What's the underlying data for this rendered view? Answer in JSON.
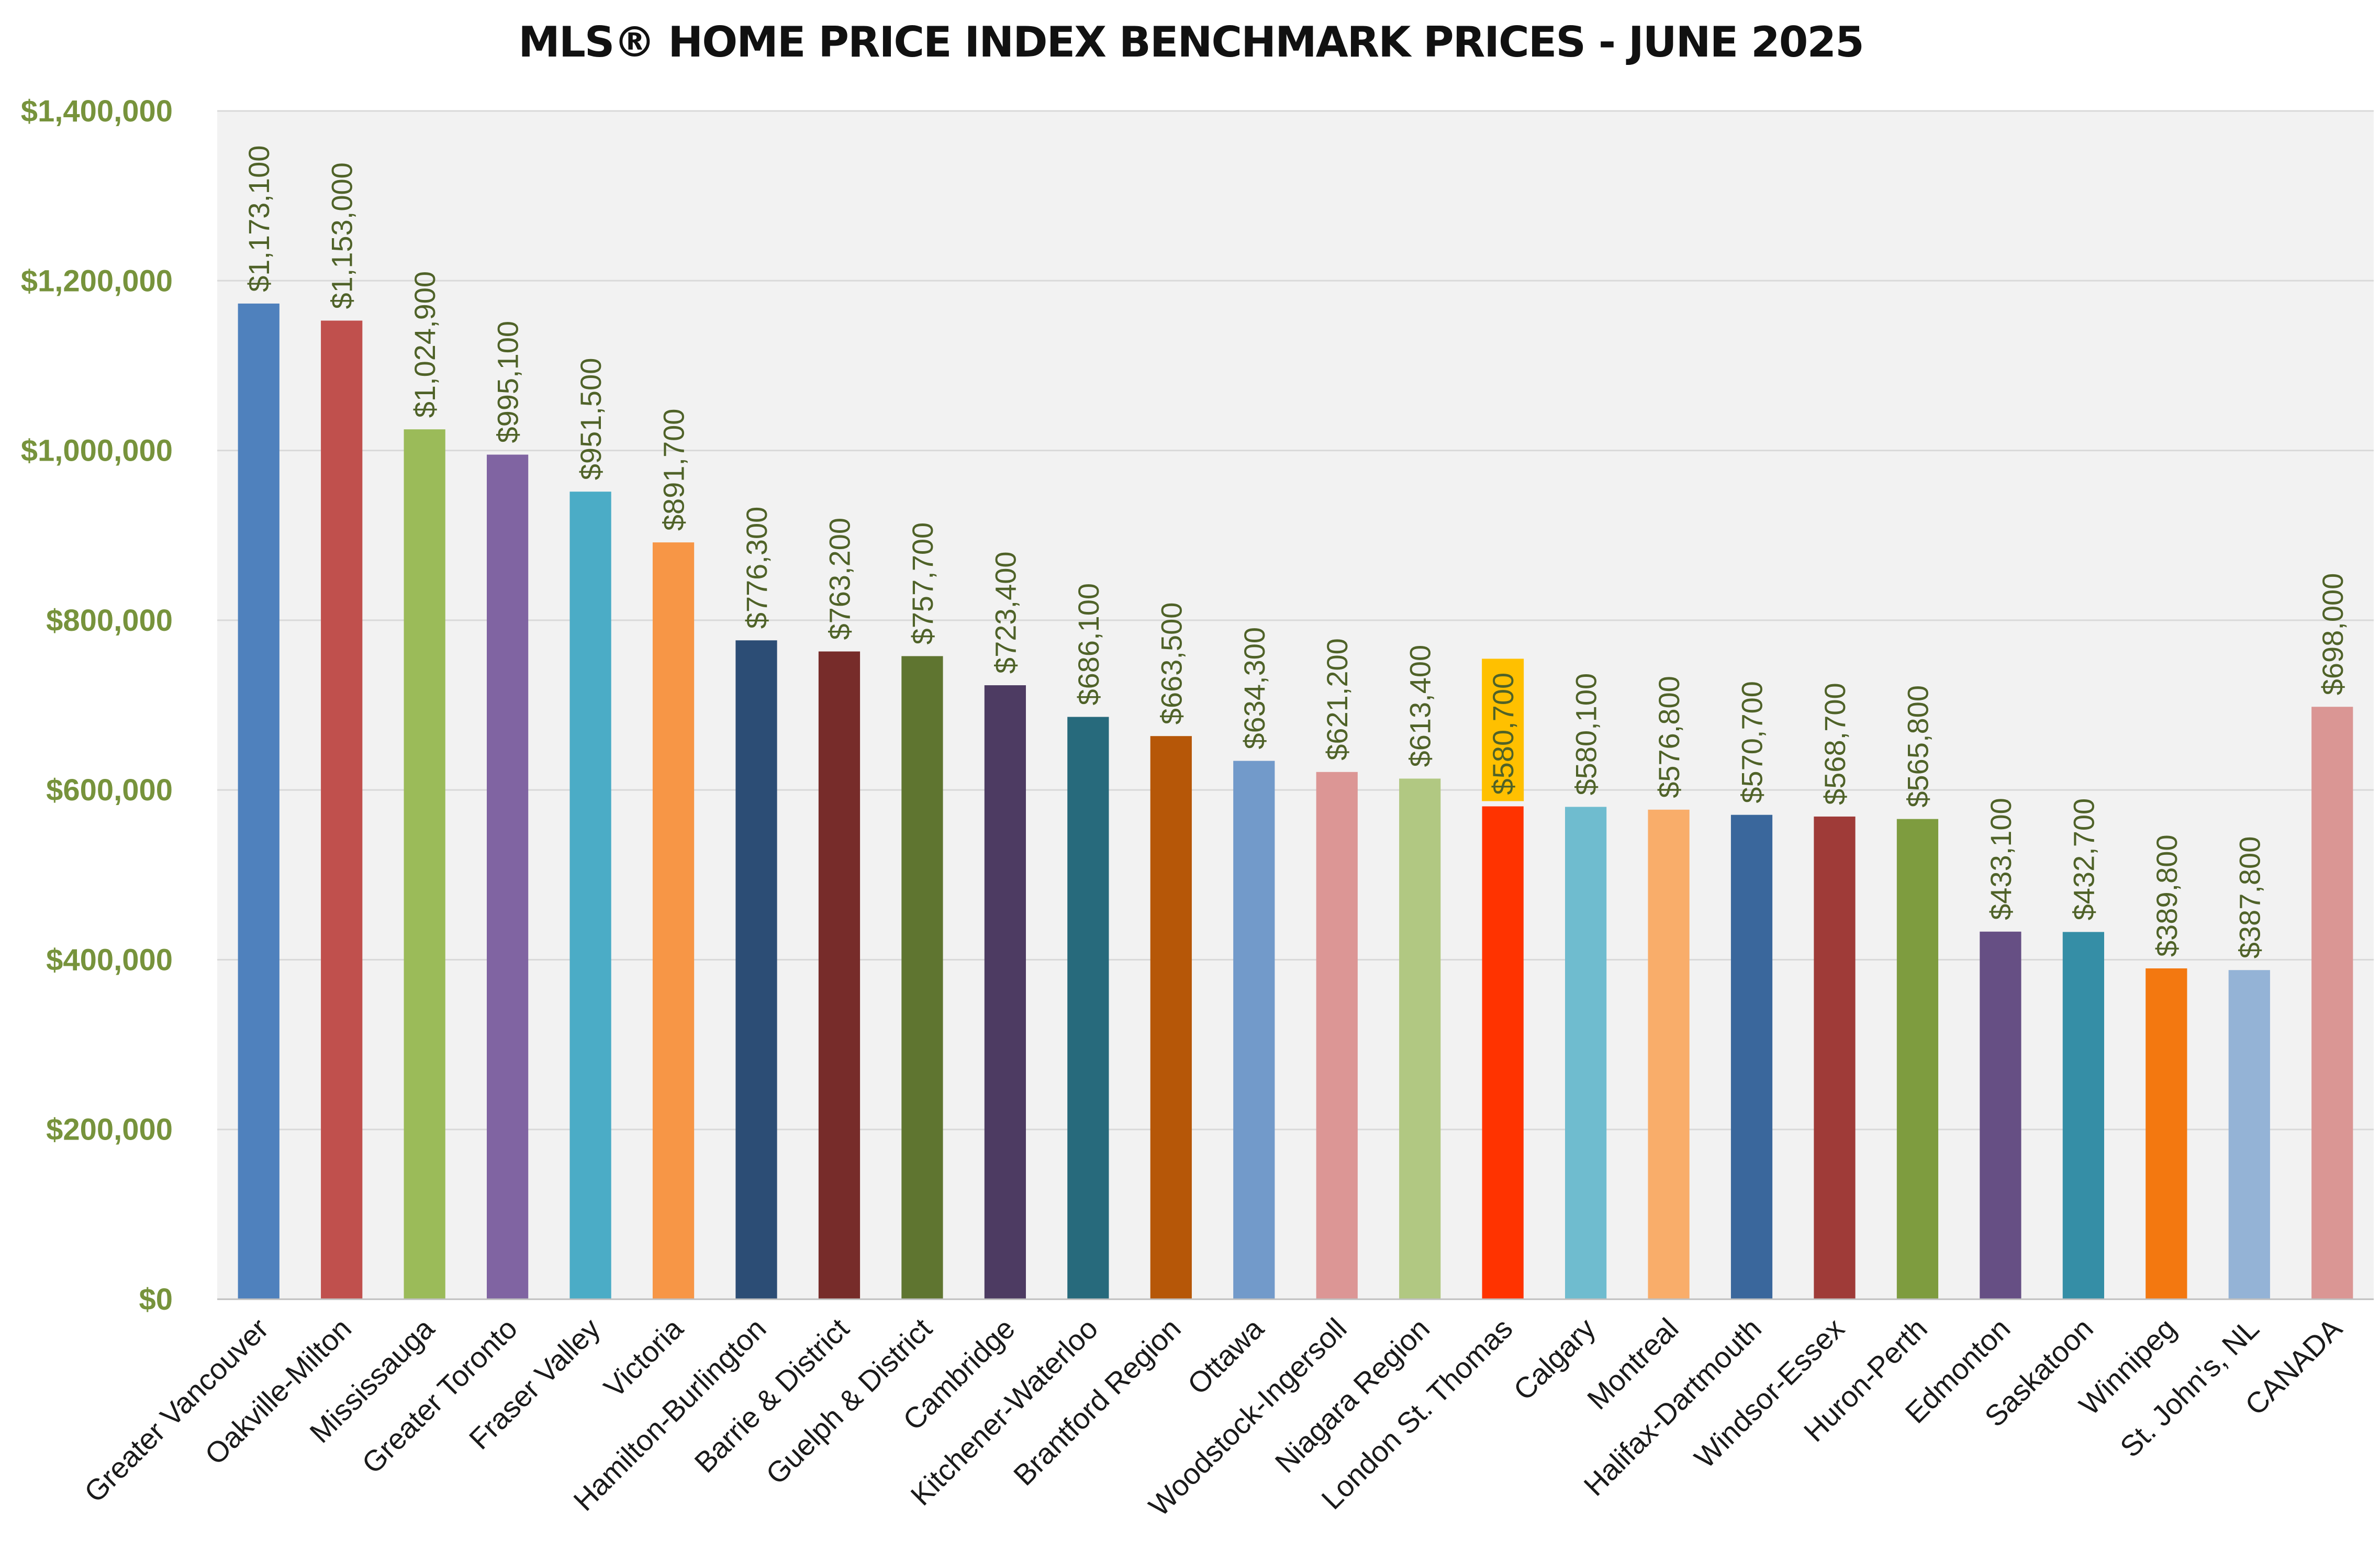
{
  "chart_data": {
    "type": "bar",
    "title": "MLS® HOME PRICE INDEX BENCHMARK PRICES - JUNE 2025",
    "xlabel": "",
    "ylabel": "",
    "ylim": [
      0,
      1400000
    ],
    "yticks": [
      {
        "value": 0,
        "label": "$0"
      },
      {
        "value": 200000,
        "label": "$200,000"
      },
      {
        "value": 400000,
        "label": "$400,000"
      },
      {
        "value": 600000,
        "label": "$600,000"
      },
      {
        "value": 800000,
        "label": "$800,000"
      },
      {
        "value": 1000000,
        "label": "$1,000,000"
      },
      {
        "value": 1200000,
        "label": "$1,200,000"
      },
      {
        "value": 1400000,
        "label": "$1,400,000"
      }
    ],
    "grid": true,
    "legend": "none",
    "highlight_category": "London St. Thomas",
    "highlight_label_background": "#ffc000",
    "categories": [
      "Greater Vancouver",
      "Oakville-Milton",
      "Mississauga",
      "Greater Toronto",
      "Fraser Valley",
      "Victoria",
      "Hamilton-Burlington",
      "Barrie & District",
      "Guelph & District",
      "Cambridge",
      "Kitchener-Waterloo",
      "Brantford Region",
      "Ottawa",
      "Woodstock-Ingersoll",
      "Niagara Region",
      "London St. Thomas",
      "Calgary",
      "Montreal",
      "Halifax-Dartmouth",
      "Windsor-Essex",
      "Huron-Perth",
      "Edmonton",
      "Saskatoon",
      "Winnipeg",
      "St. John's, NL",
      "CANADA"
    ],
    "values": [
      1173100,
      1153000,
      1024900,
      995100,
      951500,
      891700,
      776300,
      763200,
      757700,
      723400,
      686100,
      663500,
      634300,
      621200,
      613400,
      580700,
      580100,
      576800,
      570700,
      568700,
      565800,
      433100,
      432700,
      389800,
      387800,
      698000
    ],
    "value_labels": [
      "$1,173,100",
      "$1,153,000",
      "$1,024,900",
      "$995,100",
      "$951,500",
      "$891,700",
      "$776,300",
      "$763,200",
      "$757,700",
      "$723,400",
      "$686,100",
      "$663,500",
      "$634,300",
      "$621,200",
      "$613,400",
      "$580,700",
      "$580,100",
      "$576,800",
      "$570,700",
      "$568,700",
      "$565,800",
      "$433,100",
      "$432,700",
      "$389,800",
      "$387,800",
      "$698,000"
    ],
    "colors": [
      "#4f81bd",
      "#c0504d",
      "#9bbb59",
      "#8064a2",
      "#4bacc6",
      "#f79646",
      "#2c4d75",
      "#772c2a",
      "#5f7530",
      "#4d3b62",
      "#276a7c",
      "#b65708",
      "#729aca",
      "#dc9695",
      "#b1c882",
      "#ff3300",
      "#6fbccf",
      "#f9ad6a",
      "#3a679c",
      "#9f3b38",
      "#7e9c3f",
      "#664f84",
      "#358ea6",
      "#f37810",
      "#94b3d6",
      "#da9694"
    ],
    "colors_meaning": {
      "plot_background": "#f2f2f2",
      "gridline": "#d9d9d9",
      "y_tick_label": "#77933c",
      "data_label": "#4f6228"
    }
  }
}
